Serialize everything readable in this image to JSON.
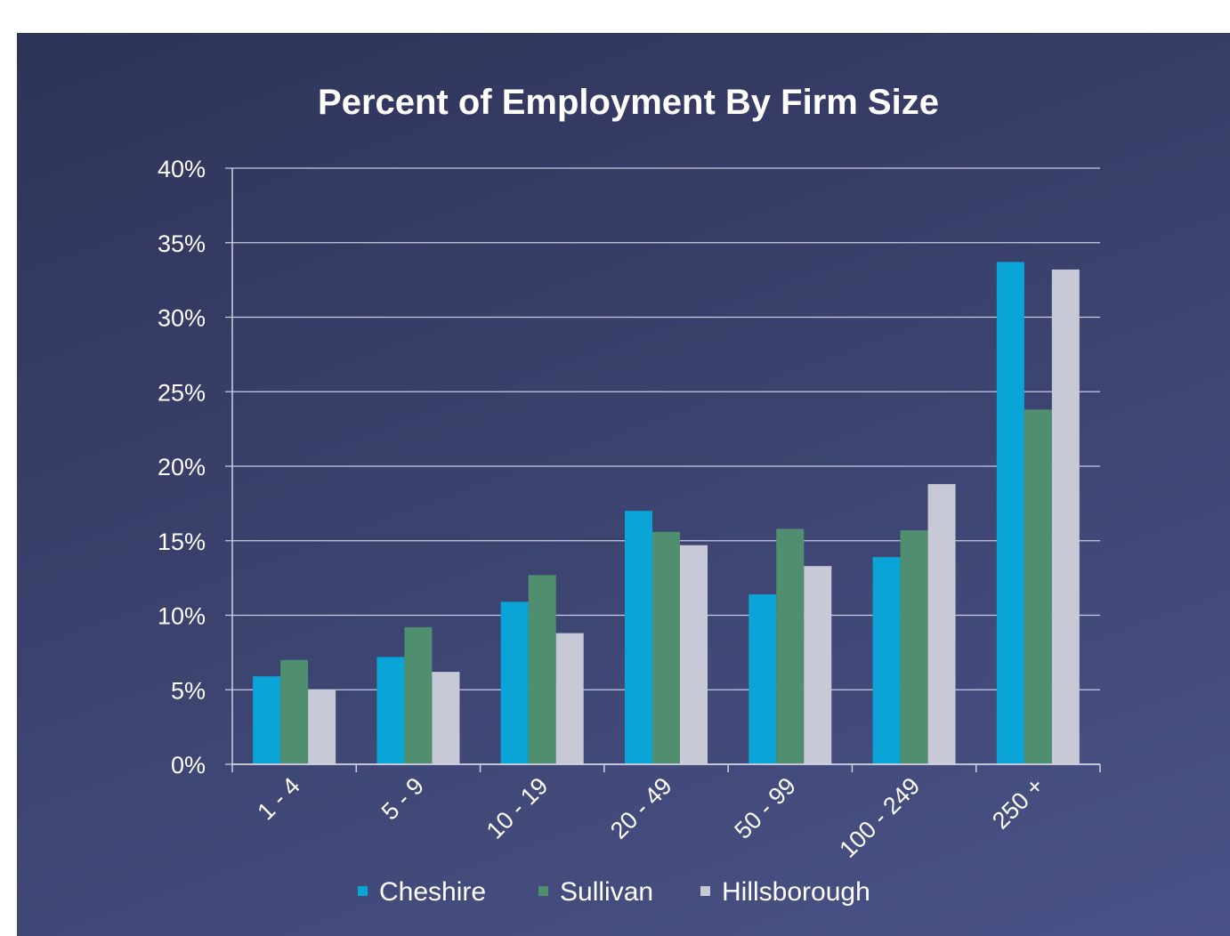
{
  "chart_data": {
    "type": "bar",
    "title": "Percent of Employment By Firm Size",
    "xlabel": "",
    "ylabel": "",
    "categories": [
      "1 - 4",
      "5 - 9",
      "10 - 19",
      "20 - 49",
      "50 - 99",
      "100 - 249",
      "250 +"
    ],
    "y_ticks": [
      "0%",
      "5%",
      "10%",
      "15%",
      "20%",
      "25%",
      "30%",
      "35%",
      "40%"
    ],
    "ylim": [
      0,
      40
    ],
    "grid": true,
    "legend_position": "bottom",
    "series": [
      {
        "name": "Cheshire",
        "color": "#0aa5d6",
        "values": [
          5.9,
          7.2,
          10.9,
          17.0,
          11.4,
          13.9,
          33.7
        ]
      },
      {
        "name": "Sullivan",
        "color": "#4f8f6f",
        "values": [
          7.0,
          9.2,
          12.7,
          15.6,
          15.8,
          15.7,
          23.8
        ]
      },
      {
        "name": "Hillsborough",
        "color": "#c8c9d6",
        "values": [
          5.0,
          6.2,
          8.8,
          14.7,
          13.3,
          18.8,
          33.2
        ]
      }
    ]
  }
}
